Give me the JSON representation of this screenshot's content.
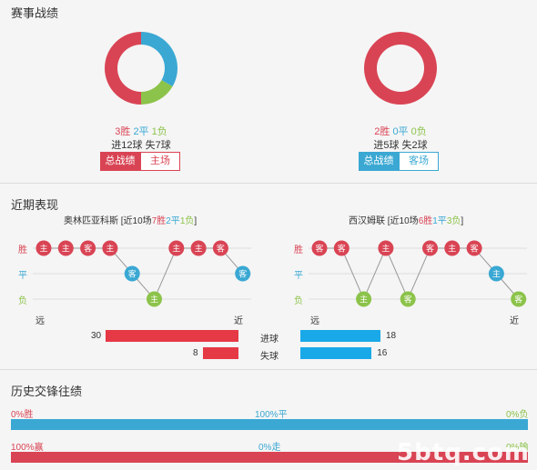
{
  "sections": {
    "record_title": "赛事战绩",
    "recent_title": "近期表现",
    "history_title": "历史交锋往绩"
  },
  "home": {
    "win": "3胜",
    "draw": "2平",
    "loss": "1负",
    "goals": "进12球",
    "conceded": "失7球",
    "tab_active": "总战绩",
    "tab_other": "主场",
    "donut": {
      "win": 3,
      "draw": 2,
      "loss": 1
    }
  },
  "away": {
    "win": "2胜",
    "draw": "0平",
    "loss": "0负",
    "goals": "进5球",
    "conceded": "失2球",
    "tab_active": "总战绩",
    "tab_other": "客场",
    "donut": {
      "win": 2,
      "draw": 0,
      "loss": 0
    }
  },
  "recent": {
    "home_name": "奥林匹亚科斯",
    "home_prefix": "[近10场",
    "home_w": "7胜",
    "home_d": "2平",
    "home_l": "1负",
    "home_suffix": "]",
    "away_name": "西汉姆联",
    "away_prefix": "[近10场",
    "away_w": "6胜",
    "away_d": "1平",
    "away_l": "3负",
    "away_suffix": "]",
    "row_win": "胜",
    "row_draw": "平",
    "row_loss": "负",
    "far": "远",
    "near": "近",
    "home_seq": [
      {
        "r": "w",
        "t": "主"
      },
      {
        "r": "w",
        "t": "主"
      },
      {
        "r": "w",
        "t": "客"
      },
      {
        "r": "w",
        "t": "主"
      },
      {
        "r": "d",
        "t": "客"
      },
      {
        "r": "l",
        "t": "主"
      },
      {
        "r": "w",
        "t": "主"
      },
      {
        "r": "w",
        "t": "主"
      },
      {
        "r": "w",
        "t": "客"
      },
      {
        "r": "d",
        "t": "客"
      }
    ],
    "away_seq": [
      {
        "r": "w",
        "t": "客"
      },
      {
        "r": "w",
        "t": "客"
      },
      {
        "r": "l",
        "t": "主"
      },
      {
        "r": "w",
        "t": "主"
      },
      {
        "r": "l",
        "t": "客"
      },
      {
        "r": "w",
        "t": "客"
      },
      {
        "r": "w",
        "t": "主"
      },
      {
        "r": "w",
        "t": "客"
      },
      {
        "r": "d",
        "t": "主"
      },
      {
        "r": "l",
        "t": "客"
      }
    ],
    "goals_label": "进球",
    "conceded_label": "失球",
    "home_goals": 30,
    "home_conceded": 8,
    "away_goals": 18,
    "away_conceded": 16,
    "home_goals_text": "30",
    "home_conceded_text": "8",
    "away_goals_text": "18",
    "away_conceded_text": "16"
  },
  "history": {
    "row1": {
      "left": "0%胜",
      "mid": "100%平",
      "right": "0%负",
      "left_pct": 0,
      "mid_pct": 100
    },
    "row2": {
      "left": "100%赢",
      "mid": "0%走",
      "right": "0%输",
      "left_pct": 100,
      "mid_pct": 0
    }
  },
  "watermark": "5btq.com",
  "colors": {
    "win": "#d94454",
    "draw": "#3aa8d3",
    "loss": "#8cc34a",
    "goals": "#e63946",
    "conceded_blue": "#1aa9e8"
  }
}
